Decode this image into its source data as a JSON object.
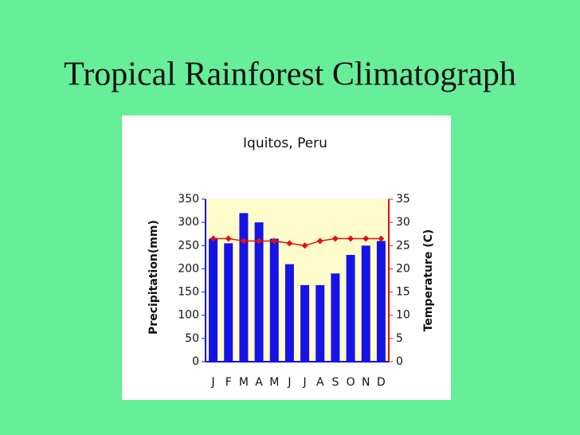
{
  "slide_title": "Tropical Rainforest Climatograph",
  "chart_data": {
    "type": "combo",
    "title": "Iquitos, Peru",
    "categories": [
      "J",
      "F",
      "M",
      "A",
      "M",
      "J",
      "J",
      "A",
      "S",
      "O",
      "N",
      "D"
    ],
    "series": [
      {
        "name": "Precipitation",
        "type": "bar",
        "color": "#1414e6",
        "axis": "y",
        "values": [
          265,
          255,
          320,
          300,
          265,
          210,
          165,
          165,
          190,
          230,
          250,
          260
        ]
      },
      {
        "name": "Temperature",
        "type": "line",
        "color": "#e01010",
        "axis": "y2",
        "values": [
          26.5,
          26.5,
          26,
          26,
          26,
          25.5,
          25,
          26,
          26.5,
          26.5,
          26.5,
          26.5
        ]
      }
    ],
    "ylabel": "Precipitation(mm)",
    "y2label": "Temperature (C)",
    "ylim": [
      0,
      350
    ],
    "yticks": [
      0,
      50,
      100,
      150,
      200,
      250,
      300,
      350
    ],
    "y2lim": [
      0,
      35
    ],
    "y2ticks": [
      0,
      5,
      10,
      15,
      20,
      25,
      30,
      35
    ],
    "grid": false
  }
}
